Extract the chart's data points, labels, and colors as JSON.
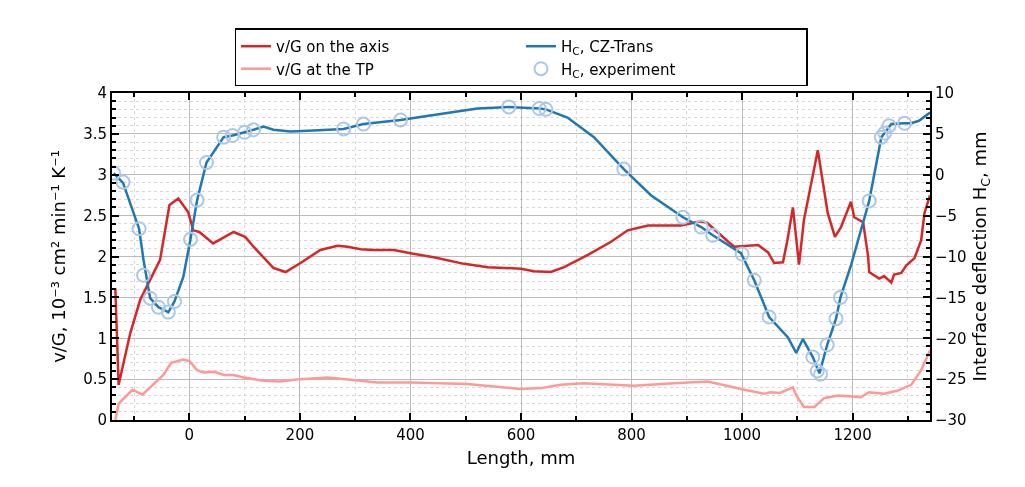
{
  "chart_data": {
    "type": "line",
    "xlabel": "Length, mm",
    "ylabel": "v/G, 10⁻³ cm² min⁻¹ K⁻¹",
    "y2label": "Interface deflection H$_{C}$, mm",
    "xlim": [
      -140,
      1340
    ],
    "xticks": [
      0,
      200,
      400,
      600,
      800,
      1000,
      1200
    ],
    "ylim": [
      0,
      4
    ],
    "yticks": [
      0,
      0.5,
      1,
      1.5,
      2,
      2.5,
      3,
      3.5,
      4
    ],
    "y2lim": [
      -30,
      10
    ],
    "y2ticks": [
      {
        "value": -30,
        "label": "−30"
      },
      {
        "value": -25,
        "label": "−25"
      },
      {
        "value": -20,
        "label": "−20"
      },
      {
        "value": -15,
        "label": "−15"
      },
      {
        "value": -10,
        "label": "−10"
      },
      {
        "value": -5,
        "label": "−5"
      },
      0,
      5,
      10
    ],
    "grid": true,
    "legend": "top",
    "line_style": "solid",
    "series": [
      {
        "name": "v/G on the axis",
        "type": "line",
        "color": "#d62728",
        "marker": "none",
        "x": [
          -134,
          -128,
          -107,
          -89,
          -53,
          -36,
          -20,
          -2,
          7,
          18,
          43,
          80,
          101,
          116,
          152,
          174,
          201,
          237,
          268,
          286,
          310,
          334,
          370,
          400,
          442,
          497,
          540,
          600,
          623,
          654,
          678,
          721,
          763,
          793,
          830,
          889,
          926,
          937,
          975,
          986,
          1029,
          1047,
          1058,
          1074,
          1082,
          1092,
          1103,
          1112,
          1137,
          1155,
          1168,
          1179,
          1197,
          1203,
          1219,
          1228,
          1230,
          1248,
          1257,
          1270,
          1275,
          1288,
          1297,
          1312,
          1324,
          1330,
          1340
        ],
        "values": [
          1.61,
          0.43,
          1.06,
          1.47,
          1.96,
          2.63,
          2.71,
          2.54,
          2.32,
          2.3,
          2.16,
          2.3,
          2.24,
          2.12,
          1.86,
          1.81,
          1.92,
          2.08,
          2.13,
          2.12,
          2.09,
          2.08,
          2.08,
          2.04,
          1.99,
          1.91,
          1.87,
          1.85,
          1.82,
          1.81,
          1.87,
          2.02,
          2.18,
          2.32,
          2.38,
          2.38,
          2.43,
          2.41,
          2.18,
          2.12,
          2.14,
          2.05,
          1.92,
          1.93,
          2.2,
          2.6,
          1.9,
          2.45,
          3.3,
          2.53,
          2.24,
          2.36,
          2.67,
          2.48,
          2.42,
          2.0,
          1.81,
          1.73,
          1.76,
          1.68,
          1.78,
          1.8,
          1.89,
          1.98,
          2.2,
          2.53,
          2.75
        ]
      },
      {
        "name": "H$_{C}$, CZ-Trans",
        "type": "line",
        "axis": "y2",
        "color": "#1f77b4",
        "marker": "none",
        "x": [
          -137,
          -120,
          -91,
          -83,
          -71,
          -56,
          -38,
          -27,
          -11,
          2,
          14,
          31,
          62,
          78,
          100,
          116,
          134,
          152,
          183,
          225,
          279,
          315,
          382,
          442,
          521,
          578,
          633,
          645,
          684,
          732,
          786,
          835,
          893,
          926,
          947,
          998,
          1022,
          1049,
          1083,
          1098,
          1110,
          1128,
          1140,
          1154,
          1170,
          1178,
          1197,
          1230,
          1252,
          1258,
          1270,
          1294,
          1306,
          1320,
          1340
        ],
        "values": [
          0.2,
          -1.0,
          -6.6,
          -10.4,
          -15.1,
          -16.2,
          -16.8,
          -15.5,
          -12.5,
          -7.9,
          -3.1,
          1.5,
          4.6,
          4.8,
          5.2,
          5.5,
          5.9,
          5.5,
          5.3,
          5.4,
          5.6,
          6.2,
          6.7,
          7.3,
          8.1,
          8.3,
          8.1,
          8.0,
          7.0,
          4.6,
          0.7,
          -2.5,
          -5.2,
          -6.4,
          -7.4,
          -9.6,
          -12.9,
          -17.4,
          -19.9,
          -21.8,
          -20.1,
          -22.3,
          -24.3,
          -20.8,
          -17.6,
          -15.0,
          -11.1,
          -3.2,
          4.6,
          5.1,
          6.2,
          6.3,
          6.3,
          6.6,
          7.6
        ]
      },
      {
        "name": "v/G at the TP",
        "type": "line",
        "color": "#ff9896",
        "marker": "none",
        "x": [
          -134,
          -128,
          -103,
          -85,
          -71,
          -47,
          -33,
          -11,
          0,
          14,
          26,
          46,
          62,
          80,
          98,
          134,
          164,
          201,
          250,
          310,
          340,
          400,
          503,
          551,
          600,
          636,
          672,
          714,
          804,
          877,
          938,
          998,
          1040,
          1051,
          1068,
          1092,
          1098,
          1112,
          1131,
          1149,
          1174,
          1215,
          1230,
          1257,
          1282,
          1306,
          1324,
          1340
        ],
        "values": [
          0,
          0.2,
          0.37,
          0.31,
          0.4,
          0.55,
          0.7,
          0.74,
          0.72,
          0.61,
          0.58,
          0.59,
          0.55,
          0.55,
          0.52,
          0.48,
          0.47,
          0.5,
          0.52,
          0.48,
          0.46,
          0.46,
          0.44,
          0.41,
          0.38,
          0.39,
          0.43,
          0.45,
          0.42,
          0.45,
          0.47,
          0.38,
          0.32,
          0.34,
          0.33,
          0.4,
          0.3,
          0.16,
          0.16,
          0.27,
          0.3,
          0.28,
          0.34,
          0.32,
          0.36,
          0.43,
          0.61,
          0.85
        ]
      },
      {
        "name": "H$_{C}$, experiment",
        "type": "scatter",
        "axis": "y2",
        "color": "#aec7e8",
        "marker": "circle",
        "x": [
          -137,
          -120,
          -91,
          -83,
          -71,
          -56,
          -38,
          -27,
          2,
          14,
          31,
          62,
          78,
          100,
          116,
          279,
          315,
          382,
          578,
          633,
          645,
          786,
          893,
          926,
          947,
          1000,
          1022,
          1049,
          1128,
          1136,
          1142,
          1154,
          1170,
          1178,
          1230,
          1252,
          1258,
          1266,
          1294
        ],
        "values": [
          0.2,
          -0.9,
          -6.6,
          -12.3,
          -15.1,
          -16.2,
          -16.8,
          -15.5,
          -7.9,
          -3.1,
          1.5,
          4.6,
          4.8,
          5.2,
          5.5,
          5.6,
          6.2,
          6.7,
          8.3,
          8.1,
          8.0,
          0.7,
          -5.2,
          -6.4,
          -7.4,
          -9.7,
          -12.9,
          -17.4,
          -22.3,
          -24.0,
          -24.4,
          -20.8,
          -17.6,
          -15.0,
          -3.2,
          4.6,
          5.1,
          6.0,
          6.3
        ]
      }
    ]
  }
}
